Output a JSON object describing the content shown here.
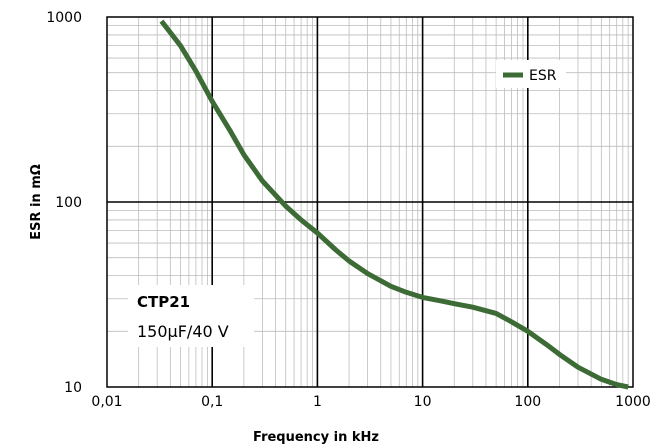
{
  "chart_data": {
    "type": "line",
    "xlabel": "Frequency in kHz",
    "ylabel": "ESR in mΩ",
    "x_scale": "log",
    "y_scale": "log",
    "xlim": [
      0.01,
      1000
    ],
    "ylim": [
      10,
      1000
    ],
    "x_ticks": [
      "0,01",
      "0,1",
      "1",
      "10",
      "100",
      "1000"
    ],
    "y_ticks": [
      "10",
      "100",
      "1000"
    ],
    "grid": true,
    "legend_position": "top-right",
    "annotation": {
      "title": "CTP21",
      "subtitle": "150µF/40 V"
    },
    "series": [
      {
        "name": "ESR",
        "color": "#3d6b35",
        "points": [
          [
            0.033,
            950
          ],
          [
            0.05,
            700
          ],
          [
            0.07,
            510
          ],
          [
            0.1,
            350
          ],
          [
            0.15,
            240
          ],
          [
            0.2,
            180
          ],
          [
            0.3,
            130
          ],
          [
            0.5,
            95
          ],
          [
            0.7,
            80
          ],
          [
            1,
            68
          ],
          [
            1.5,
            55
          ],
          [
            2,
            48
          ],
          [
            3,
            41
          ],
          [
            5,
            35
          ],
          [
            7,
            32.5
          ],
          [
            10,
            30.5
          ],
          [
            15,
            29.2
          ],
          [
            20,
            28.2
          ],
          [
            30,
            27
          ],
          [
            50,
            25
          ],
          [
            70,
            22.5
          ],
          [
            100,
            20
          ],
          [
            150,
            17
          ],
          [
            200,
            15
          ],
          [
            300,
            12.8
          ],
          [
            500,
            11
          ],
          [
            700,
            10.3
          ],
          [
            900,
            10
          ]
        ]
      }
    ]
  }
}
